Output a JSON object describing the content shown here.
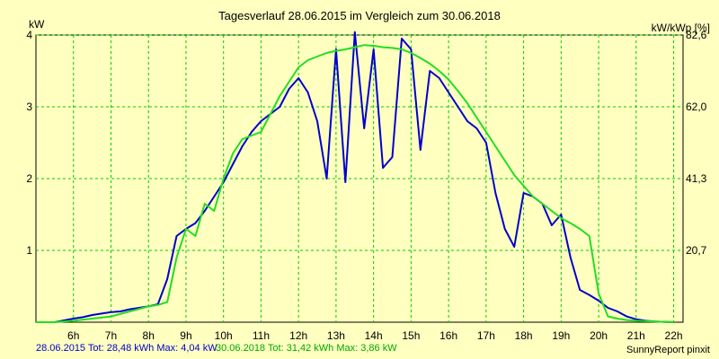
{
  "header": {
    "title": "Tagesverlauf 28.06.2015 im Vergleich zum 30.06.2018",
    "left_unit": "kW",
    "right_unit": "kW/kWp [%]"
  },
  "footer": {
    "series1_text": "28.06.2015 Tot: 28,48 kWh Max: 4,04 kW",
    "series2_text": "30.06.2018 Tot: 31,42 kWh Max: 3,86 kW",
    "credit": "SunnyReport pinxit"
  },
  "colors": {
    "background": "#ffffc0",
    "grid": "#00cc00",
    "series1": "#0000cc",
    "series2": "#22dd22"
  },
  "chart_data": {
    "type": "line",
    "title": "Tagesverlauf 28.06.2015 im Vergleich zum 30.06.2018",
    "xlabel": "",
    "ylabel": "kW",
    "y2label": "kW/kWp [%]",
    "xlim": [
      5.0,
      22.25
    ],
    "ylim": [
      0,
      4
    ],
    "xticks": [
      6,
      7,
      8,
      9,
      10,
      11,
      12,
      13,
      14,
      15,
      16,
      17,
      18,
      19,
      20,
      21,
      22
    ],
    "xtick_labels": [
      "6h",
      "7h",
      "8h",
      "9h",
      "10h",
      "11h",
      "12h",
      "13h",
      "14h",
      "15h",
      "16h",
      "17h",
      "18h",
      "19h",
      "20h",
      "21h",
      "22h"
    ],
    "yticks": [
      1,
      2,
      3,
      4
    ],
    "ytick_labels": [
      "1",
      "2",
      "3",
      "4"
    ],
    "y2ticks": [
      20.7,
      41.3,
      62.0,
      82.6
    ],
    "y2tick_labels": [
      "20,7",
      "41,3",
      "62,0",
      "82,6"
    ],
    "grid": true,
    "series": [
      {
        "name": "28.06.2015",
        "x": [
          5.0,
          5.5,
          6.0,
          6.25,
          6.5,
          6.75,
          7.0,
          7.25,
          7.5,
          7.75,
          8.0,
          8.25,
          8.5,
          8.75,
          9.0,
          9.25,
          9.5,
          9.75,
          10.0,
          10.25,
          10.5,
          10.75,
          11.0,
          11.25,
          11.5,
          11.75,
          12.0,
          12.25,
          12.5,
          12.75,
          13.0,
          13.25,
          13.5,
          13.75,
          14.0,
          14.25,
          14.5,
          14.75,
          15.0,
          15.25,
          15.5,
          15.75,
          16.0,
          16.25,
          16.5,
          16.75,
          17.0,
          17.25,
          17.5,
          17.75,
          18.0,
          18.25,
          18.5,
          18.75,
          19.0,
          19.25,
          19.5,
          19.75,
          20.0,
          20.25,
          20.5,
          20.75,
          21.0,
          21.25,
          21.5,
          22.0
        ],
        "y": [
          0.0,
          0.0,
          0.05,
          0.07,
          0.1,
          0.12,
          0.14,
          0.15,
          0.18,
          0.2,
          0.22,
          0.25,
          0.6,
          1.2,
          1.3,
          1.38,
          1.55,
          1.75,
          1.95,
          2.2,
          2.45,
          2.65,
          2.8,
          2.9,
          3.0,
          3.25,
          3.4,
          3.2,
          2.8,
          2.0,
          3.8,
          1.95,
          4.04,
          2.7,
          3.8,
          2.15,
          2.3,
          3.95,
          3.8,
          2.4,
          3.5,
          3.4,
          3.2,
          3.0,
          2.8,
          2.7,
          2.5,
          1.8,
          1.3,
          1.05,
          1.8,
          1.75,
          1.65,
          1.35,
          1.5,
          0.9,
          0.45,
          0.38,
          0.3,
          0.2,
          0.15,
          0.08,
          0.04,
          0.02,
          0.01,
          0.0
        ]
      },
      {
        "name": "30.06.2018",
        "x": [
          5.0,
          5.5,
          6.0,
          6.5,
          7.0,
          7.5,
          8.0,
          8.25,
          8.5,
          8.75,
          9.0,
          9.25,
          9.5,
          9.75,
          10.0,
          10.25,
          10.5,
          10.75,
          11.0,
          11.25,
          11.5,
          11.75,
          12.0,
          12.25,
          12.5,
          12.75,
          13.0,
          13.25,
          13.5,
          13.75,
          14.0,
          14.25,
          14.5,
          14.75,
          15.0,
          15.25,
          15.5,
          15.75,
          16.0,
          16.25,
          16.5,
          16.75,
          17.0,
          17.25,
          17.5,
          17.75,
          18.0,
          18.25,
          18.5,
          18.75,
          19.0,
          19.25,
          19.5,
          19.75,
          20.0,
          20.25,
          20.5,
          20.75,
          21.0,
          21.5,
          22.0
        ],
        "y": [
          0.0,
          0.0,
          0.02,
          0.05,
          0.08,
          0.15,
          0.22,
          0.24,
          0.28,
          0.9,
          1.3,
          1.2,
          1.65,
          1.55,
          2.0,
          2.35,
          2.55,
          2.6,
          2.65,
          2.9,
          3.15,
          3.35,
          3.55,
          3.65,
          3.7,
          3.75,
          3.78,
          3.8,
          3.83,
          3.86,
          3.85,
          3.83,
          3.82,
          3.8,
          3.75,
          3.68,
          3.6,
          3.5,
          3.38,
          3.22,
          3.05,
          2.85,
          2.65,
          2.45,
          2.25,
          2.05,
          1.9,
          1.75,
          1.65,
          1.55,
          1.45,
          1.38,
          1.3,
          1.2,
          0.4,
          0.08,
          0.05,
          0.03,
          0.02,
          0.01,
          0.0
        ]
      }
    ]
  }
}
